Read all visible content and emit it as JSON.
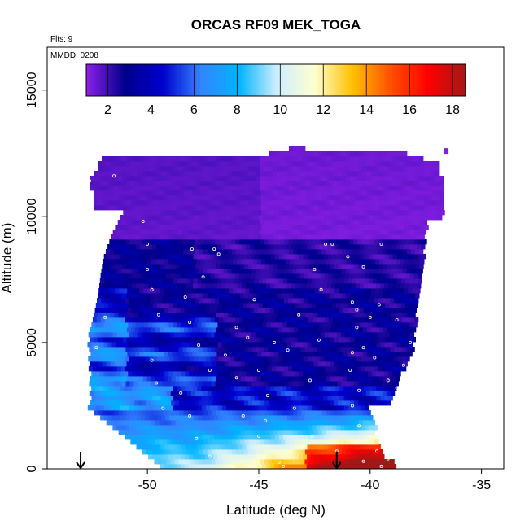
{
  "chart_data": {
    "type": "heatmap",
    "title": "ORCAS RF09 MEK_TOGA",
    "xlabel": "Latitude (deg N)",
    "ylabel": "Altitude (m)",
    "xlim": [
      -54.5,
      -34
    ],
    "ylim": [
      0,
      16700
    ],
    "x_ticks": [
      -50,
      -45,
      -40,
      -35
    ],
    "y_ticks": [
      0,
      5000,
      10000,
      15000
    ],
    "annotations": {
      "flights": "Flts: 9",
      "date": "MMDD: 0208"
    },
    "colorbar": {
      "range": [
        1,
        18.6
      ],
      "ticks": [
        2,
        4,
        6,
        8,
        10,
        12,
        14,
        16,
        18
      ],
      "colors": [
        "#8a1fe6",
        "#00008b",
        "#0000cd",
        "#3385ff",
        "#00b4ff",
        "#cdeeff",
        "#ffffd0",
        "#ffc000",
        "#ff5000",
        "#ff0000",
        "#a01818"
      ]
    },
    "arrows_at_latitude": [
      -53,
      -41.5
    ],
    "profile_points": [
      [
        -52.3,
        12200
      ],
      [
        -52.6,
        11400
      ],
      [
        -51.5,
        11600
      ],
      [
        -50.2,
        9800
      ],
      [
        -50,
        8900
      ],
      [
        -48,
        8700
      ],
      [
        -47,
        8700
      ],
      [
        -46.8,
        8500
      ],
      [
        -42,
        8900
      ],
      [
        -41.7,
        8900
      ],
      [
        -41,
        8400
      ],
      [
        -39.5,
        8900
      ],
      [
        -40.3,
        8000
      ],
      [
        -42.5,
        7900
      ],
      [
        -52.6,
        7700
      ],
      [
        -50,
        7900
      ],
      [
        -47.5,
        7600
      ],
      [
        -49.8,
        7100
      ],
      [
        -42.2,
        7100
      ],
      [
        -40.8,
        6600
      ],
      [
        -39.6,
        6500
      ],
      [
        -52.6,
        6700
      ],
      [
        -48.3,
        6800
      ],
      [
        -45.2,
        6700
      ],
      [
        -51.9,
        6000
      ],
      [
        -49.5,
        6100
      ],
      [
        -43.2,
        6100
      ],
      [
        -40.6,
        6300
      ],
      [
        -40,
        6000
      ],
      [
        -38.8,
        5900
      ],
      [
        -48.1,
        5800
      ],
      [
        -46,
        5600
      ],
      [
        -40.6,
        5600
      ],
      [
        -52.3,
        4800
      ],
      [
        -47.7,
        4900
      ],
      [
        -45.5,
        5200
      ],
      [
        -44.3,
        5000
      ],
      [
        -42.3,
        5100
      ],
      [
        -40.3,
        4800
      ],
      [
        -38.2,
        5000
      ],
      [
        -49.8,
        4300
      ],
      [
        -46.5,
        4500
      ],
      [
        -43.7,
        4700
      ],
      [
        -40.8,
        4600
      ],
      [
        -39.8,
        4400
      ],
      [
        -53.2,
        4100
      ],
      [
        -47.2,
        3900
      ],
      [
        -45,
        3900
      ],
      [
        -40.9,
        3900
      ],
      [
        -38.5,
        4100
      ],
      [
        -49.6,
        3400
      ],
      [
        -46,
        3600
      ],
      [
        -42.7,
        3500
      ],
      [
        -39.2,
        3500
      ],
      [
        -53.5,
        3200
      ],
      [
        -48.5,
        3000
      ],
      [
        -44.6,
        2900
      ],
      [
        -40.5,
        3100
      ],
      [
        -38.8,
        3200
      ],
      [
        -49.3,
        2400
      ],
      [
        -48.1,
        2100
      ],
      [
        -45.7,
        2100
      ],
      [
        -43.4,
        2400
      ],
      [
        -40.8,
        2500
      ],
      [
        -39.4,
        2300
      ],
      [
        -44.7,
        1900
      ],
      [
        -40.5,
        1700
      ],
      [
        -39,
        1900
      ],
      [
        -47.8,
        1200
      ],
      [
        -45,
        1300
      ],
      [
        -42.6,
        1300
      ],
      [
        -39.6,
        1500
      ],
      [
        -47.2,
        500
      ],
      [
        -43.9,
        100
      ],
      [
        -41.5,
        700
      ],
      [
        -40.3,
        300
      ],
      [
        -39.7,
        700
      ],
      [
        -39.2,
        400
      ],
      [
        -39.5,
        100
      ],
      [
        -44.1,
        250
      ]
    ]
  }
}
